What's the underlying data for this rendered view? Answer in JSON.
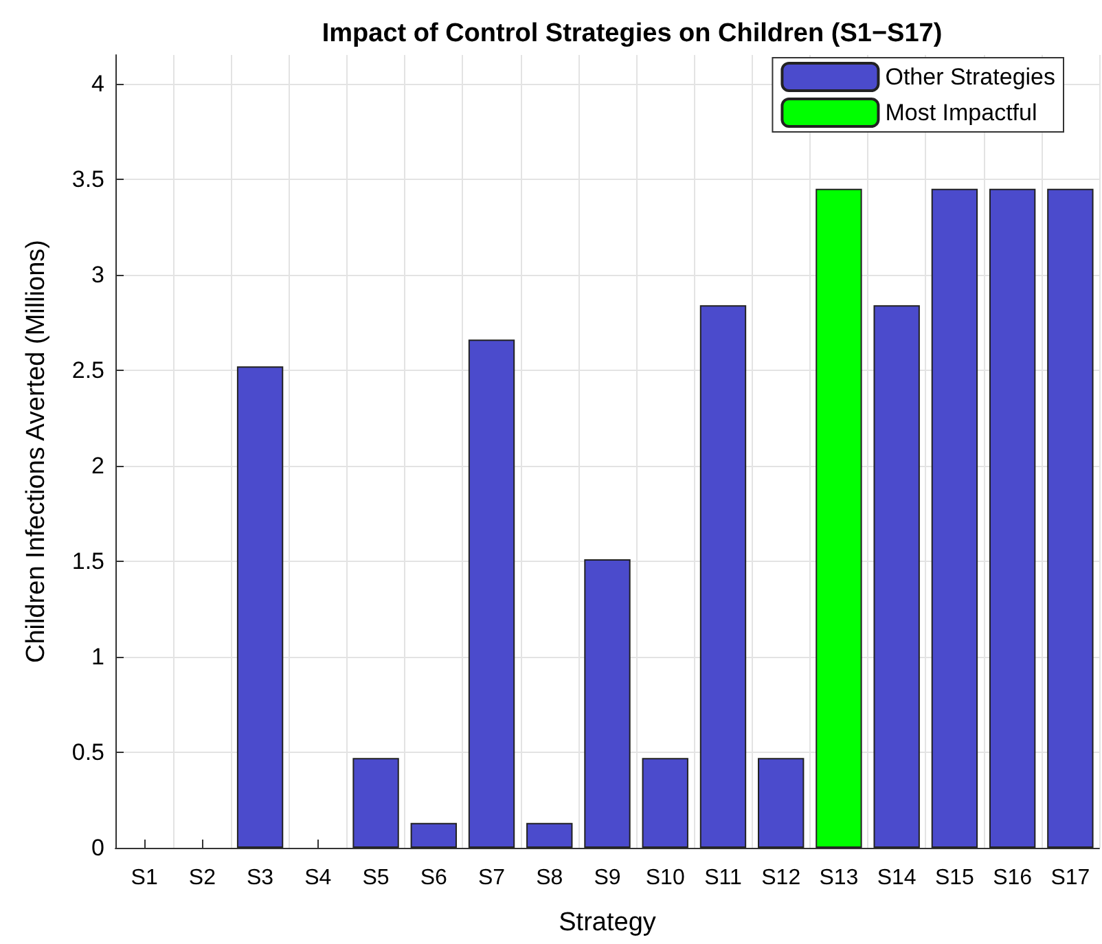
{
  "chart_data": {
    "type": "bar",
    "title": "Impact of Control Strategies on Children (S1−S17)",
    "xlabel": "Strategy",
    "ylabel": "Children Infections Averted (Millions)",
    "categories": [
      "S1",
      "S2",
      "S3",
      "S4",
      "S5",
      "S6",
      "S7",
      "S8",
      "S9",
      "S10",
      "S11",
      "S12",
      "S13",
      "S14",
      "S15",
      "S16",
      "S17"
    ],
    "series": [
      {
        "name": "Other Strategies",
        "color": "#4b4bcc",
        "values": [
          0,
          0,
          2.52,
          0,
          0.47,
          0.13,
          2.66,
          0.13,
          1.51,
          0.47,
          2.84,
          0.47,
          null,
          2.84,
          3.45,
          3.45,
          3.45
        ]
      },
      {
        "name": "Most Impactful",
        "color": "#00ff00",
        "values": [
          null,
          null,
          null,
          null,
          null,
          null,
          null,
          null,
          null,
          null,
          null,
          null,
          3.45,
          null,
          null,
          null,
          null
        ]
      }
    ],
    "ylim": [
      0,
      4.15
    ],
    "yticks": [
      0,
      0.5,
      1,
      1.5,
      2,
      2.5,
      3,
      3.5,
      4
    ],
    "grid": true,
    "legend": "top right"
  }
}
